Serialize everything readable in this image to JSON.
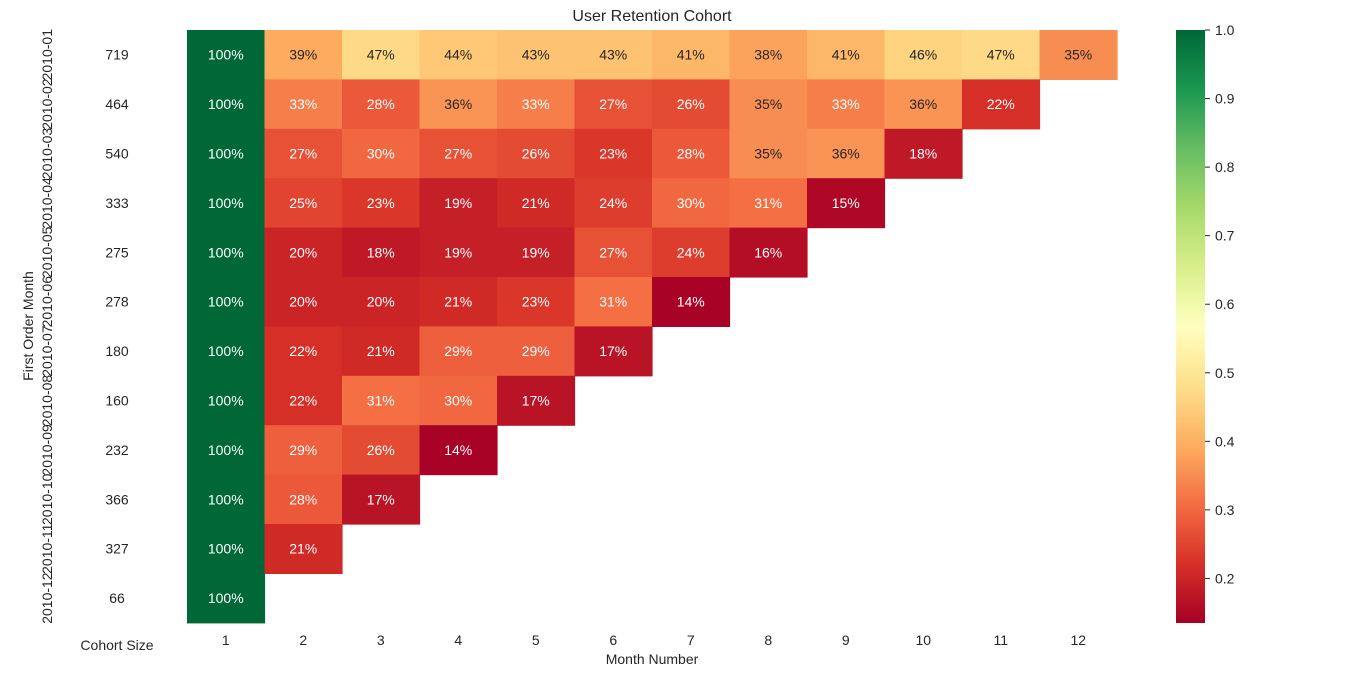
{
  "chart_data": {
    "type": "heatmap",
    "title": "User Retention Cohort",
    "xlabel": "Month Number",
    "ylabel": "First Order Month",
    "cohort_size_label": "Cohort Size",
    "x_ticks": [
      "1",
      "2",
      "3",
      "4",
      "5",
      "6",
      "7",
      "8",
      "9",
      "10",
      "11",
      "12"
    ],
    "rows": [
      "2010-01",
      "2010-02",
      "2010-03",
      "2010-04",
      "2010-05",
      "2010-06",
      "2010-07",
      "2010-08",
      "2010-09",
      "2010-10",
      "2010-11",
      "2010-12"
    ],
    "cohort_sizes": [
      "719",
      "464",
      "540",
      "333",
      "275",
      "278",
      "180",
      "160",
      "232",
      "366",
      "327",
      "66"
    ],
    "values": [
      [
        100,
        39,
        47,
        44,
        43,
        43,
        41,
        38,
        41,
        46,
        47,
        35
      ],
      [
        100,
        33,
        28,
        36,
        33,
        27,
        26,
        35,
        33,
        36,
        22
      ],
      [
        100,
        27,
        30,
        27,
        26,
        23,
        28,
        35,
        36,
        18
      ],
      [
        100,
        25,
        23,
        19,
        21,
        24,
        30,
        31,
        15
      ],
      [
        100,
        20,
        18,
        19,
        19,
        27,
        24,
        16
      ],
      [
        100,
        20,
        20,
        21,
        23,
        31,
        14
      ],
      [
        100,
        22,
        21,
        29,
        29,
        17
      ],
      [
        100,
        22,
        31,
        30,
        17
      ],
      [
        100,
        29,
        26,
        14
      ],
      [
        100,
        28,
        17
      ],
      [
        100,
        21
      ],
      [
        100
      ]
    ],
    "colorbar": {
      "colormap": "RdYlGn",
      "vmin": 0.135,
      "vmax": 1.0,
      "ticks": [
        "0.2",
        "0.3",
        "0.4",
        "0.5",
        "0.6",
        "0.7",
        "0.8",
        "0.9",
        "1.0"
      ]
    }
  }
}
